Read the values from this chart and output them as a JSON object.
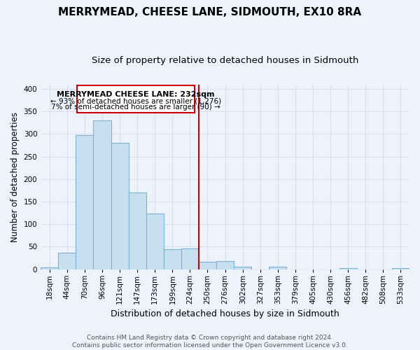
{
  "title": "MERRYMEAD, CHEESE LANE, SIDMOUTH, EX10 8RA",
  "subtitle": "Size of property relative to detached houses in Sidmouth",
  "xlabel": "Distribution of detached houses by size in Sidmouth",
  "ylabel": "Number of detached properties",
  "footer_line1": "Contains HM Land Registry data © Crown copyright and database right 2024.",
  "footer_line2": "Contains public sector information licensed under the Open Government Licence v3.0.",
  "bar_labels": [
    "18sqm",
    "44sqm",
    "70sqm",
    "96sqm",
    "121sqm",
    "147sqm",
    "173sqm",
    "199sqm",
    "224sqm",
    "250sqm",
    "276sqm",
    "302sqm",
    "327sqm",
    "353sqm",
    "379sqm",
    "405sqm",
    "430sqm",
    "456sqm",
    "482sqm",
    "508sqm",
    "533sqm"
  ],
  "bar_values": [
    4,
    37,
    297,
    330,
    280,
    170,
    123,
    44,
    46,
    17,
    18,
    5,
    0,
    6,
    0,
    0,
    0,
    2,
    0,
    0,
    2
  ],
  "bar_color": "#c8dff0",
  "bar_edge_color": "#7ab4d4",
  "property_line_label": "MERRYMEAD CHEESE LANE: 232sqm",
  "annotation_line1": "← 93% of detached houses are smaller (1,276)",
  "annotation_line2": "7% of semi-detached houses are larger (90) →",
  "annotation_box_color": "#ffffff",
  "annotation_border_color": "#cc0000",
  "vline_color": "#cc0000",
  "ylim": [
    0,
    410
  ],
  "background_color": "#eef2fb",
  "grid_color": "#d8dff0",
  "title_fontsize": 11,
  "subtitle_fontsize": 9.5,
  "ylabel_fontsize": 8.5,
  "xlabel_fontsize": 9,
  "tick_fontsize": 7.5,
  "footer_fontsize": 6.5,
  "annot_fontsize_bold": 8,
  "annot_fontsize": 7.5
}
